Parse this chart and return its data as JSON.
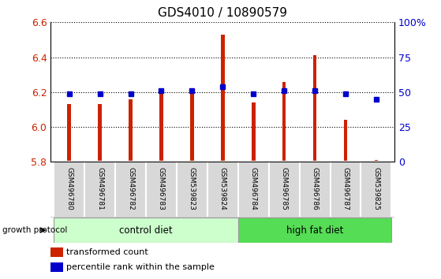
{
  "title": "GDS4010 / 10890579",
  "samples": [
    "GSM496780",
    "GSM496781",
    "GSM496782",
    "GSM496783",
    "GSM539823",
    "GSM539824",
    "GSM496784",
    "GSM496785",
    "GSM496786",
    "GSM496787",
    "GSM539825"
  ],
  "transformed_count": [
    6.13,
    6.13,
    6.16,
    6.21,
    6.21,
    6.53,
    6.14,
    6.26,
    6.41,
    6.04,
    5.81
  ],
  "percentile_rank": [
    6.19,
    6.19,
    6.19,
    6.21,
    6.21,
    6.23,
    6.19,
    6.21,
    6.21,
    6.19,
    6.16
  ],
  "ylim": [
    5.8,
    6.6
  ],
  "yticks": [
    5.8,
    6.0,
    6.2,
    6.4,
    6.6
  ],
  "right_yticks": [
    0,
    25,
    50,
    75,
    100
  ],
  "right_ytick_labels": [
    "0",
    "25",
    "50",
    "75",
    "100%"
  ],
  "bar_color": "#cc2200",
  "dot_color": "#0000cc",
  "n_control": 6,
  "n_highfat": 5,
  "control_label": "control diet",
  "high_fat_label": "high fat diet",
  "group_label": "growth protocol",
  "legend_bar_label": "transformed count",
  "legend_dot_label": "percentile rank within the sample",
  "control_color": "#ccffcc",
  "high_fat_color": "#55dd55",
  "tick_label_color_left": "#cc2200",
  "tick_label_color_right": "#0000cc",
  "bar_bottom": 5.8,
  "bar_width": 0.12
}
